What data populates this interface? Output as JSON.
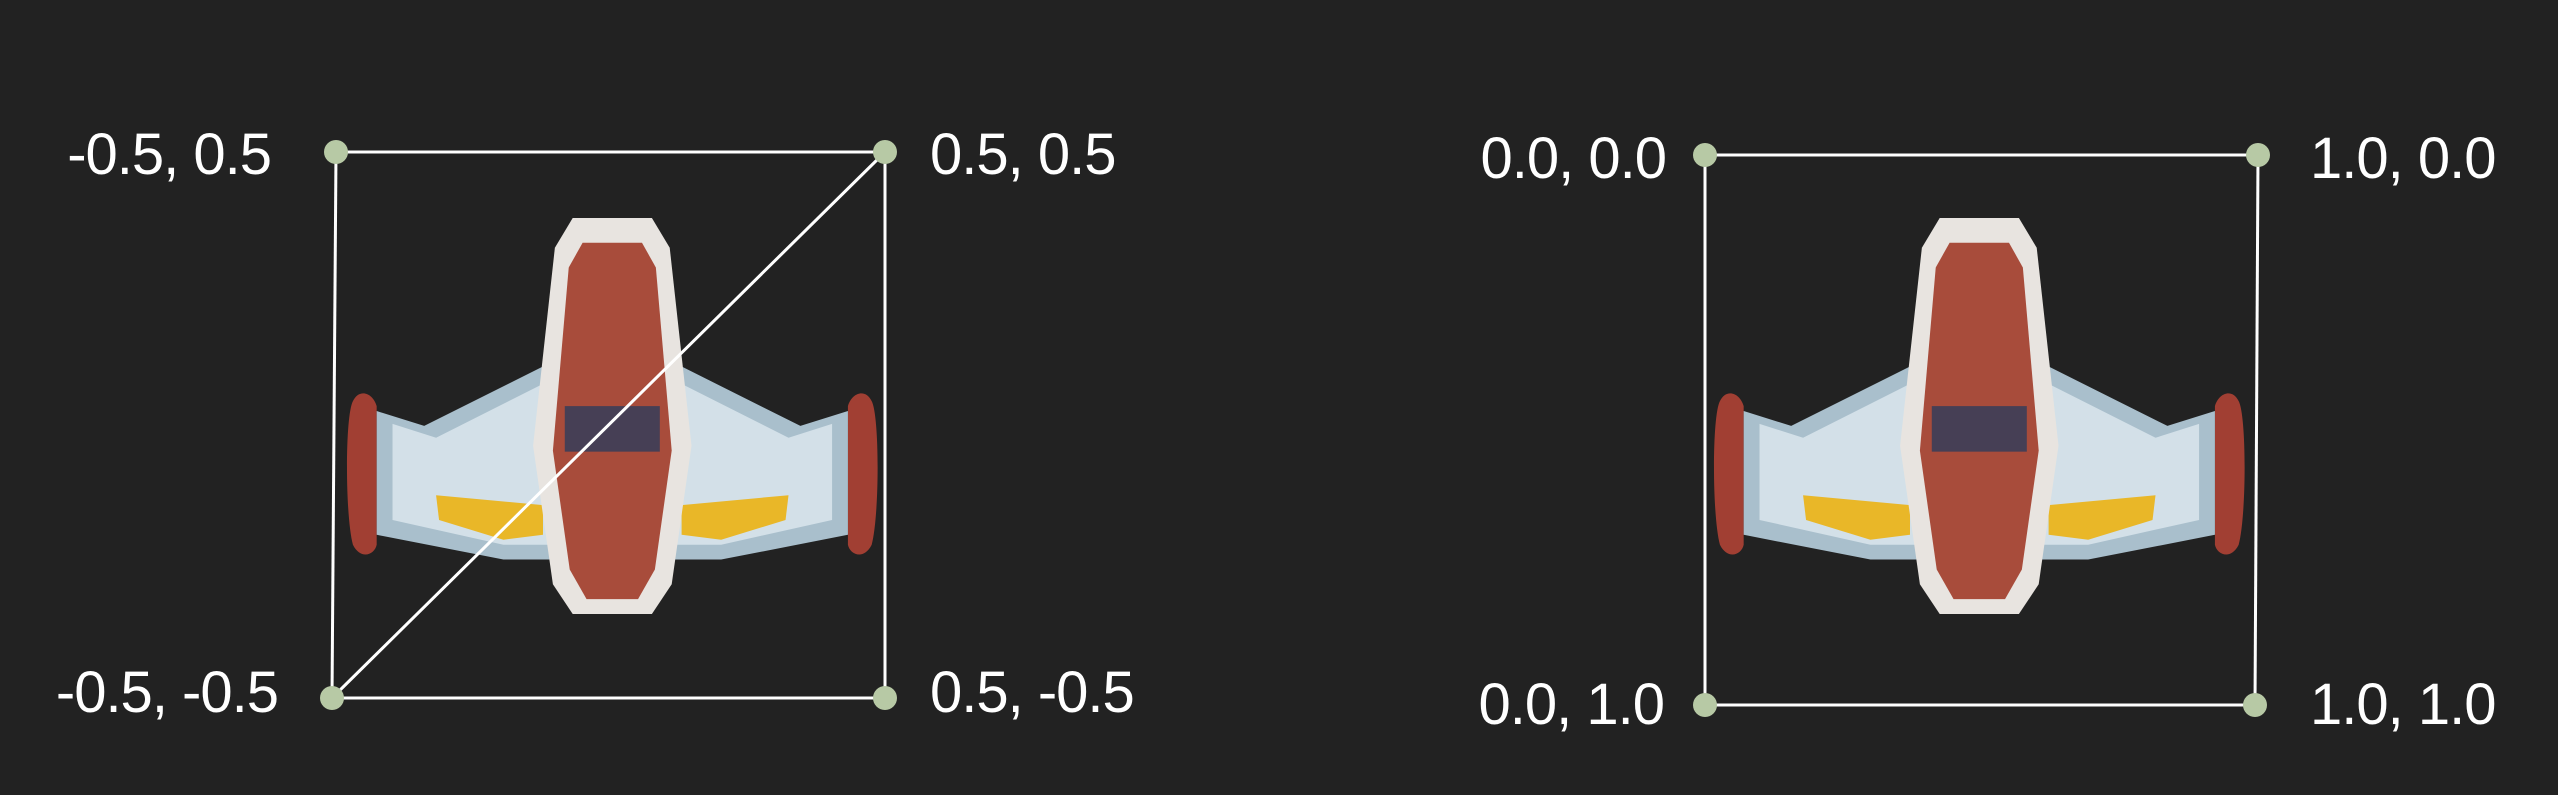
{
  "colors": {
    "background": "#222222",
    "edge": "#ffffff",
    "vertex": "#b7c9a5",
    "ship_hull": "#a84c3b",
    "ship_frame": "#e8e4e0",
    "ship_wing": "#d3e0e8",
    "ship_wing_shadow": "#a9bfcc",
    "ship_cockpit": "#463f55",
    "ship_fin": "#a13f33",
    "ship_thruster": "#e9b728"
  },
  "diagrams": [
    {
      "name": "vertex-positions",
      "corners": {
        "top_left": "-0.5, 0.5",
        "top_right": "0.5, 0.5",
        "bottom_left": "-0.5, -0.5",
        "bottom_right": "0.5, -0.5"
      },
      "diagonal": true,
      "icon": "spaceship-icon"
    },
    {
      "name": "texture-coordinates",
      "corners": {
        "top_left": "0.0, 0.0",
        "top_right": "1.0, 0.0",
        "bottom_left": "0.0, 1.0",
        "bottom_right": "1.0, 1.0"
      },
      "diagonal": false,
      "icon": "spaceship-icon"
    }
  ]
}
